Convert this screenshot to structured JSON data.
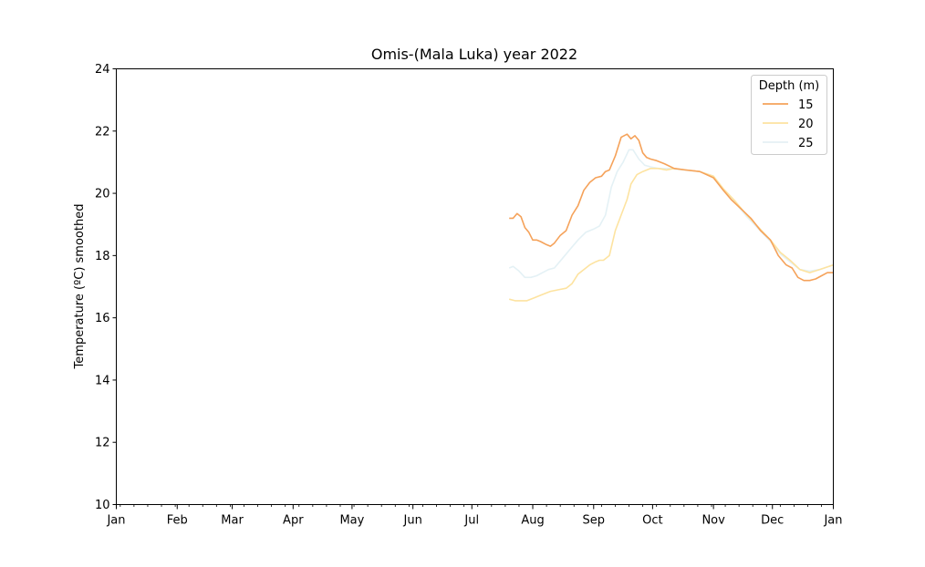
{
  "chart_data": {
    "type": "line",
    "title": "Omis-(Mala Luka) year 2022",
    "xlabel": "",
    "ylabel": "Temperature (ºC) smoothed",
    "ylim": [
      10,
      24
    ],
    "yticks": [
      10,
      12,
      14,
      16,
      18,
      20,
      22,
      24
    ],
    "xlim": [
      "2022-01-01",
      "2023-01-01"
    ],
    "xtick_labels": [
      "Jan",
      "Feb",
      "Mar",
      "Apr",
      "May",
      "Jun",
      "Jul",
      "Aug",
      "Sep",
      "Oct",
      "Nov",
      "Dec",
      "Jan"
    ],
    "grid": false,
    "legend": {
      "title": "Depth (m)",
      "placement": "top-right"
    },
    "series": [
      {
        "name": "15",
        "color": "#f5a25a",
        "x": [
          "2022-07-20",
          "2022-07-22",
          "2022-07-24",
          "2022-07-26",
          "2022-07-28",
          "2022-07-30",
          "2022-08-01",
          "2022-08-03",
          "2022-08-05",
          "2022-08-08",
          "2022-08-10",
          "2022-08-12",
          "2022-08-15",
          "2022-08-18",
          "2022-08-21",
          "2022-08-24",
          "2022-08-27",
          "2022-08-30",
          "2022-09-02",
          "2022-09-05",
          "2022-09-07",
          "2022-09-09",
          "2022-09-12",
          "2022-09-15",
          "2022-09-18",
          "2022-09-20",
          "2022-09-22",
          "2022-09-24",
          "2022-09-26",
          "2022-09-28",
          "2022-09-30",
          "2022-10-03",
          "2022-10-07",
          "2022-10-12",
          "2022-10-18",
          "2022-10-25",
          "2022-11-01",
          "2022-11-06",
          "2022-11-10",
          "2022-11-15",
          "2022-11-20",
          "2022-11-25",
          "2022-11-30",
          "2022-12-04",
          "2022-12-08",
          "2022-12-11",
          "2022-12-14",
          "2022-12-17",
          "2022-12-20",
          "2022-12-23",
          "2022-12-26",
          "2022-12-29",
          "2023-01-01"
        ],
        "values": [
          19.2,
          19.2,
          19.35,
          19.25,
          18.9,
          18.75,
          18.5,
          18.5,
          18.45,
          18.35,
          18.3,
          18.4,
          18.65,
          18.8,
          19.3,
          19.6,
          20.1,
          20.35,
          20.5,
          20.55,
          20.7,
          20.75,
          21.2,
          21.8,
          21.9,
          21.75,
          21.85,
          21.7,
          21.3,
          21.15,
          21.1,
          21.05,
          20.95,
          20.8,
          20.75,
          20.7,
          20.5,
          20.1,
          19.8,
          19.5,
          19.2,
          18.8,
          18.5,
          18.0,
          17.7,
          17.6,
          17.3,
          17.2,
          17.2,
          17.25,
          17.35,
          17.45,
          17.45
        ]
      },
      {
        "name": "20",
        "color": "#fde3a0",
        "x": [
          "2022-07-20",
          "2022-07-23",
          "2022-07-26",
          "2022-07-29",
          "2022-08-02",
          "2022-08-06",
          "2022-08-10",
          "2022-08-14",
          "2022-08-18",
          "2022-08-21",
          "2022-08-24",
          "2022-08-27",
          "2022-08-30",
          "2022-09-02",
          "2022-09-04",
          "2022-09-06",
          "2022-09-09",
          "2022-09-12",
          "2022-09-15",
          "2022-09-18",
          "2022-09-20",
          "2022-09-23",
          "2022-09-26",
          "2022-09-30",
          "2022-10-04",
          "2022-10-08",
          "2022-10-12",
          "2022-10-18",
          "2022-10-25",
          "2022-11-01",
          "2022-11-06",
          "2022-11-12",
          "2022-11-18",
          "2022-11-24",
          "2022-11-30",
          "2022-12-05",
          "2022-12-10",
          "2022-12-15",
          "2022-12-20",
          "2022-12-25",
          "2023-01-01"
        ],
        "values": [
          16.6,
          16.55,
          16.55,
          16.55,
          16.65,
          16.75,
          16.85,
          16.9,
          16.95,
          17.1,
          17.4,
          17.55,
          17.7,
          17.8,
          17.85,
          17.85,
          18.0,
          18.8,
          19.3,
          19.8,
          20.3,
          20.6,
          20.7,
          20.8,
          20.8,
          20.75,
          20.8,
          20.75,
          20.7,
          20.55,
          20.15,
          19.75,
          19.3,
          18.9,
          18.5,
          18.1,
          17.85,
          17.55,
          17.45,
          17.55,
          17.7
        ]
      },
      {
        "name": "25",
        "color": "#e4f1f5",
        "x": [
          "2022-07-20",
          "2022-07-22",
          "2022-07-25",
          "2022-07-28",
          "2022-07-31",
          "2022-08-03",
          "2022-08-06",
          "2022-08-09",
          "2022-08-12",
          "2022-08-16",
          "2022-08-20",
          "2022-08-24",
          "2022-08-28",
          "2022-09-01",
          "2022-09-04",
          "2022-09-07",
          "2022-09-10",
          "2022-09-13",
          "2022-09-16",
          "2022-09-19",
          "2022-09-21",
          "2022-09-24",
          "2022-09-27",
          "2022-09-30",
          "2022-10-04",
          "2022-10-10",
          "2022-10-17",
          "2022-10-25",
          "2022-11-01",
          "2022-11-06",
          "2022-11-12",
          "2022-11-18",
          "2022-11-24",
          "2022-11-30",
          "2022-12-05",
          "2022-12-10",
          "2022-12-15",
          "2022-12-20",
          "2022-12-25",
          "2023-01-01"
        ],
        "values": [
          17.6,
          17.65,
          17.5,
          17.3,
          17.3,
          17.35,
          17.45,
          17.55,
          17.6,
          17.9,
          18.2,
          18.5,
          18.75,
          18.85,
          18.95,
          19.3,
          20.2,
          20.7,
          21.0,
          21.4,
          21.4,
          21.1,
          20.9,
          20.85,
          20.8,
          20.8,
          20.75,
          20.7,
          20.55,
          20.1,
          19.7,
          19.25,
          18.85,
          18.45,
          18.05,
          17.8,
          17.55,
          17.5,
          17.55,
          17.7
        ]
      }
    ]
  }
}
